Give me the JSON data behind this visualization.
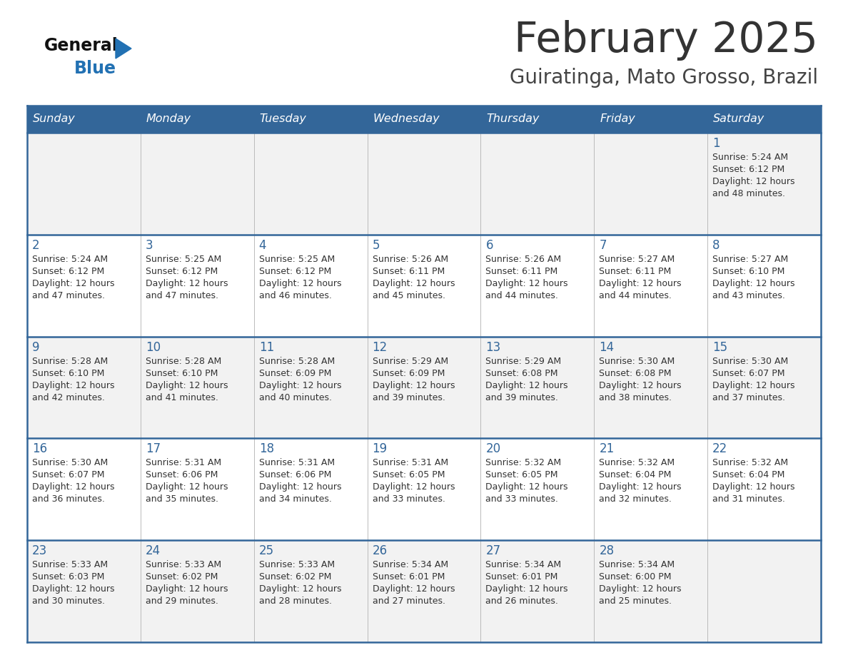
{
  "title": "February 2025",
  "subtitle": "Guiratinga, Mato Grosso, Brazil",
  "days_of_week": [
    "Sunday",
    "Monday",
    "Tuesday",
    "Wednesday",
    "Thursday",
    "Friday",
    "Saturday"
  ],
  "header_bg": "#336699",
  "header_text": "#FFFFFF",
  "row_bg_odd": "#F2F2F2",
  "row_bg_even": "#FFFFFF",
  "day_number_color": "#336699",
  "info_text_color": "#333333",
  "border_color": "#336699",
  "title_color": "#333333",
  "subtitle_color": "#444444",
  "logo_general_color": "#111111",
  "logo_blue_color": "#2271B3",
  "calendar_data": [
    [
      null,
      null,
      null,
      null,
      null,
      null,
      {
        "day": "1",
        "sunrise": "5:24 AM",
        "sunset": "6:12 PM",
        "daylight": "12 hours",
        "daylight2": "and 48 minutes."
      }
    ],
    [
      {
        "day": "2",
        "sunrise": "5:24 AM",
        "sunset": "6:12 PM",
        "daylight": "12 hours",
        "daylight2": "and 47 minutes."
      },
      {
        "day": "3",
        "sunrise": "5:25 AM",
        "sunset": "6:12 PM",
        "daylight": "12 hours",
        "daylight2": "and 47 minutes."
      },
      {
        "day": "4",
        "sunrise": "5:25 AM",
        "sunset": "6:12 PM",
        "daylight": "12 hours",
        "daylight2": "and 46 minutes."
      },
      {
        "day": "5",
        "sunrise": "5:26 AM",
        "sunset": "6:11 PM",
        "daylight": "12 hours",
        "daylight2": "and 45 minutes."
      },
      {
        "day": "6",
        "sunrise": "5:26 AM",
        "sunset": "6:11 PM",
        "daylight": "12 hours",
        "daylight2": "and 44 minutes."
      },
      {
        "day": "7",
        "sunrise": "5:27 AM",
        "sunset": "6:11 PM",
        "daylight": "12 hours",
        "daylight2": "and 44 minutes."
      },
      {
        "day": "8",
        "sunrise": "5:27 AM",
        "sunset": "6:10 PM",
        "daylight": "12 hours",
        "daylight2": "and 43 minutes."
      }
    ],
    [
      {
        "day": "9",
        "sunrise": "5:28 AM",
        "sunset": "6:10 PM",
        "daylight": "12 hours",
        "daylight2": "and 42 minutes."
      },
      {
        "day": "10",
        "sunrise": "5:28 AM",
        "sunset": "6:10 PM",
        "daylight": "12 hours",
        "daylight2": "and 41 minutes."
      },
      {
        "day": "11",
        "sunrise": "5:28 AM",
        "sunset": "6:09 PM",
        "daylight": "12 hours",
        "daylight2": "and 40 minutes."
      },
      {
        "day": "12",
        "sunrise": "5:29 AM",
        "sunset": "6:09 PM",
        "daylight": "12 hours",
        "daylight2": "and 39 minutes."
      },
      {
        "day": "13",
        "sunrise": "5:29 AM",
        "sunset": "6:08 PM",
        "daylight": "12 hours",
        "daylight2": "and 39 minutes."
      },
      {
        "day": "14",
        "sunrise": "5:30 AM",
        "sunset": "6:08 PM",
        "daylight": "12 hours",
        "daylight2": "and 38 minutes."
      },
      {
        "day": "15",
        "sunrise": "5:30 AM",
        "sunset": "6:07 PM",
        "daylight": "12 hours",
        "daylight2": "and 37 minutes."
      }
    ],
    [
      {
        "day": "16",
        "sunrise": "5:30 AM",
        "sunset": "6:07 PM",
        "daylight": "12 hours",
        "daylight2": "and 36 minutes."
      },
      {
        "day": "17",
        "sunrise": "5:31 AM",
        "sunset": "6:06 PM",
        "daylight": "12 hours",
        "daylight2": "and 35 minutes."
      },
      {
        "day": "18",
        "sunrise": "5:31 AM",
        "sunset": "6:06 PM",
        "daylight": "12 hours",
        "daylight2": "and 34 minutes."
      },
      {
        "day": "19",
        "sunrise": "5:31 AM",
        "sunset": "6:05 PM",
        "daylight": "12 hours",
        "daylight2": "and 33 minutes."
      },
      {
        "day": "20",
        "sunrise": "5:32 AM",
        "sunset": "6:05 PM",
        "daylight": "12 hours",
        "daylight2": "and 33 minutes."
      },
      {
        "day": "21",
        "sunrise": "5:32 AM",
        "sunset": "6:04 PM",
        "daylight": "12 hours",
        "daylight2": "and 32 minutes."
      },
      {
        "day": "22",
        "sunrise": "5:32 AM",
        "sunset": "6:04 PM",
        "daylight": "12 hours",
        "daylight2": "and 31 minutes."
      }
    ],
    [
      {
        "day": "23",
        "sunrise": "5:33 AM",
        "sunset": "6:03 PM",
        "daylight": "12 hours",
        "daylight2": "and 30 minutes."
      },
      {
        "day": "24",
        "sunrise": "5:33 AM",
        "sunset": "6:02 PM",
        "daylight": "12 hours",
        "daylight2": "and 29 minutes."
      },
      {
        "day": "25",
        "sunrise": "5:33 AM",
        "sunset": "6:02 PM",
        "daylight": "12 hours",
        "daylight2": "and 28 minutes."
      },
      {
        "day": "26",
        "sunrise": "5:34 AM",
        "sunset": "6:01 PM",
        "daylight": "12 hours",
        "daylight2": "and 27 minutes."
      },
      {
        "day": "27",
        "sunrise": "5:34 AM",
        "sunset": "6:01 PM",
        "daylight": "12 hours",
        "daylight2": "and 26 minutes."
      },
      {
        "day": "28",
        "sunrise": "5:34 AM",
        "sunset": "6:00 PM",
        "daylight": "12 hours",
        "daylight2": "and 25 minutes."
      },
      null
    ]
  ],
  "fig_width": 11.88,
  "fig_height": 9.18,
  "dpi": 100
}
